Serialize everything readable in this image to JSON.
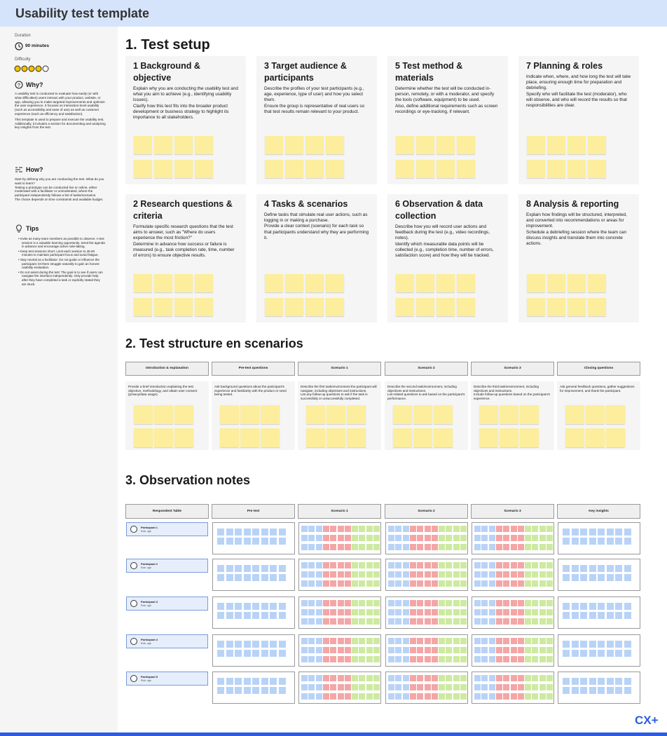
{
  "header": {
    "title": "Usability test template"
  },
  "sidebar": {
    "duration_label": "Duration",
    "duration": "90 minutes",
    "difficulty_label": "Difficulty",
    "why": {
      "title": "Why?",
      "paragraphs": [
        "A usability test is conducted to evaluate how easily (or with what difficulties) users interact with your product, website, or app, allowing you to make targeted improvements and optimize the user experience. It focuses on interaction-level usability (such as accessibility and ease of use) as well as customer experience (such as efficiency and satisfaction).",
        "This template is used to prepare and execute the usability test. Additionally, it includes a section for documenting and analyzing key insights from the test."
      ]
    },
    "how": {
      "title": "How?",
      "paragraphs": [
        "Start by defining why you are conducting the test. What do you want to learn?",
        "Testing a prototype can be conducted live or online, either moderated with a facilitator or unmoderated, where the participant independently follows a list of tasks/scenarios.",
        "The choice depends on time constraints and available budget."
      ]
    },
    "tips": {
      "title": "Tips",
      "items": [
        "Invite as many team members as possible to observe: A test session is a valuable learning opportunity. Send the agenda in advance and encourage active note-taking.",
        "Keep test sessions short: Limit each session to 45-60 minutes to maintain participant focus and avoid fatigue.",
        "Stay neutral as a facilitator: Do not guide or influence the participant; let them struggle naturally to gain an honest usability evaluation.",
        "Do not assist during the test: The goal is to see if users can navigate the interface independently. Only provide help after they have completed a task or explicitly stated they are stuck."
      ]
    }
  },
  "setup": {
    "title": "1. Test setup",
    "cards": [
      {
        "title": "1 Background & objective",
        "body": [
          "Explain why you are conducting the usability test and what you aim to achieve (e.g., identifying usability issues).",
          "Clarify how this test fits into the broader product development or business strategy to highlight its importance to all stakeholders."
        ]
      },
      {
        "title": "2 Research questions & criteria",
        "body": [
          "Formulate specific research questions that the test aims to answer, such as \"Where do users experience the most friction?\"",
          "Determine in advance how success or failure is measured (e.g., task completion rate, time, number of errors) to ensure objective results."
        ]
      },
      {
        "title": "3 Target audience & participants",
        "body": [
          "Describe the profiles of your test participants (e.g., age, experience, type of user) and how you select them.",
          "Ensure the group is representative of real users so that test results remain relevant to your product."
        ]
      },
      {
        "title": "4 Tasks & scenarios",
        "body": [
          "Define tasks that simulate real user actions, such as logging in or making a purchase.",
          "Provide a clear context (scenario) for each task so that participants understand why they are performing it."
        ]
      },
      {
        "title": "5 Test method & materials",
        "body": [
          "Determine whether the test will be conducted in-person, remotely, or with a moderator, and specify the tools (software, equipment) to be used.",
          "Also, define additional requirements such as screen recordings or eye-tracking, if relevant."
        ]
      },
      {
        "title": "6 Observation & data collection",
        "body": [
          "Describe how you will record user actions and feedback during the test (e.g., video recordings, notes).",
          "Identify which measurable data points will be collected (e.g., completion time, number of errors, satisfaction score) and how they will be tracked."
        ]
      },
      {
        "title": "7 Planning & roles",
        "body": [
          "Indicate when, where, and how long the test will take place, ensuring enough time for preparation and debriefing.",
          "Specify who will facilitate the test (moderator), who will observe, and who will record the results so that responsibilities are clear."
        ]
      },
      {
        "title": "8 Analysis & reporting",
        "body": [
          "Explain how findings will be structured, interpreted, and converted into recommendations or areas for improvement.",
          "Schedule a debriefing session where the team can discuss insights and translate them into concrete actions."
        ]
      }
    ]
  },
  "structure": {
    "title": "2. Test structure en scenarios",
    "columns": [
      {
        "header": "Introduction & explanation",
        "body": [
          "Provide a brief introduction explaining the test objective, methodology, and obtain user consent (privacy/data usage)."
        ]
      },
      {
        "header": "Pre-test questions",
        "body": [
          "Ask background questions about the participant's experience and familiarity with the product or need being tested."
        ]
      },
      {
        "header": "Scenario 1",
        "body": [
          "Describe the first task/environment the participant will navigate, including objectives and instructions.",
          "List any follow-up questions to ask if the task is successfully or unsuccessfully completed."
        ]
      },
      {
        "header": "Scenario 2",
        "body": [
          "Describe the second task/environment, including objectives and instructions.",
          "List related questions to ask based on the participant's performance."
        ]
      },
      {
        "header": "Scenario 3",
        "body": [
          "Describe the third task/environment, including objectives and instructions.",
          "Include follow-up questions based on the participant's experience."
        ]
      },
      {
        "header": "Closing questions",
        "body": [
          "Ask general feedback questions, gather suggestions for improvement, and thank the participant."
        ]
      }
    ]
  },
  "observation": {
    "title": "3. Observation notes",
    "columns": [
      "Respondent Table",
      "Pre test",
      "Scenario 1",
      "Scenario 2",
      "Scenario 3",
      "Key insights"
    ],
    "rows": [
      {
        "name": "Participant 1",
        "detail": "Role, age"
      },
      {
        "name": "Participant 2",
        "detail": "Role, age"
      },
      {
        "name": "Participant 3",
        "detail": "Role, age"
      },
      {
        "name": "Participant 4",
        "detail": "Role, age"
      },
      {
        "name": "Participant 5",
        "detail": "Role, age"
      }
    ]
  },
  "logo": "CX+"
}
